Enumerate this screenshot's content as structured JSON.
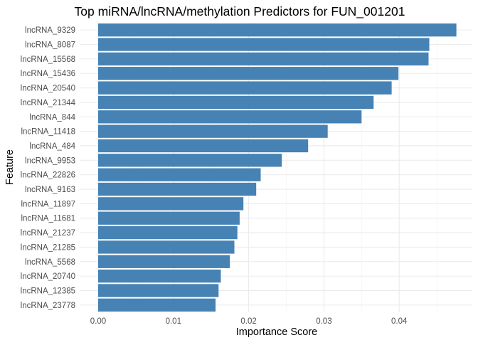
{
  "chart_data": {
    "type": "bar",
    "orientation": "horizontal",
    "title": "Top miRNA/lncRNA/methylation Predictors for FUN_001201",
    "xlabel": "Importance Score",
    "ylabel": "Feature",
    "xlim": [
      0,
      0.048
    ],
    "x_ticks": [
      0.0,
      0.01,
      0.02,
      0.03,
      0.04
    ],
    "x_tick_labels": [
      "0.00",
      "0.01",
      "0.02",
      "0.03",
      "0.04"
    ],
    "categories": [
      "lncRNA_9329",
      "lncRNA_8087",
      "lncRNA_15568",
      "lncRNA_15436",
      "lncRNA_20540",
      "lncRNA_21344",
      "lncRNA_844",
      "lncRNA_11418",
      "lncRNA_484",
      "lncRNA_9953",
      "lncRNA_22826",
      "lncRNA_9163",
      "lncRNA_11897",
      "lncRNA_11681",
      "lncRNA_21237",
      "lncRNA_21285",
      "lncRNA_5568",
      "lncRNA_20740",
      "lncRNA_12385",
      "lncRNA_23778"
    ],
    "values": [
      0.0476,
      0.044,
      0.0439,
      0.0399,
      0.039,
      0.0366,
      0.035,
      0.0305,
      0.0279,
      0.0244,
      0.0216,
      0.021,
      0.0193,
      0.0188,
      0.0185,
      0.0181,
      0.0175,
      0.0163,
      0.016,
      0.0156
    ],
    "bar_color": "#4682B4",
    "grid": true,
    "legend": "none"
  }
}
